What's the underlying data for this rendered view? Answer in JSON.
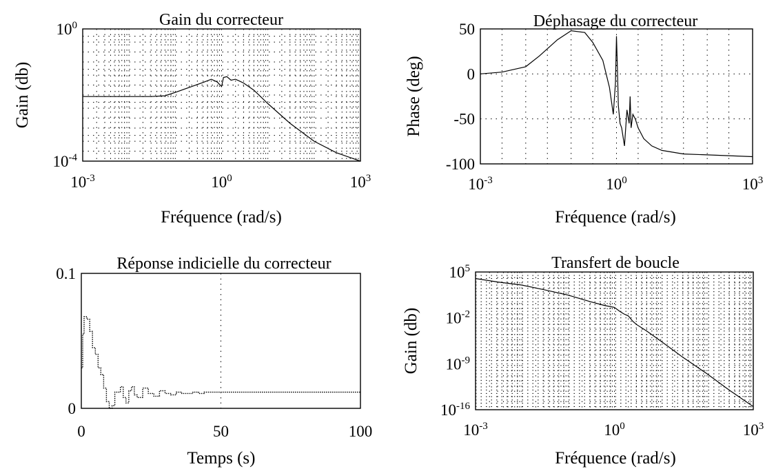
{
  "chart_data": [
    {
      "type": "line",
      "title": "Gain du correcteur",
      "xlabel": "Fréquence (rad/s)",
      "ylabel": "Gain (db)",
      "xscale": "log",
      "yscale": "log",
      "xlim": [
        0.001,
        1000
      ],
      "ylim": [
        0.0001,
        1
      ],
      "grid": true,
      "xticks": [
        {
          "base": "10",
          "exp": "-3"
        },
        {
          "base": "10",
          "exp": "0"
        },
        {
          "base": "10",
          "exp": "3"
        }
      ],
      "yticks": [
        {
          "base": "10",
          "exp": "0"
        },
        {
          "base": "10",
          "exp": "-4"
        }
      ],
      "series": [
        {
          "x": [
            0.001,
            0.01,
            0.03,
            0.06,
            0.1,
            0.2,
            0.4,
            0.6,
            0.8,
            1.0,
            1.1,
            1.3,
            1.6,
            2,
            2.5,
            3,
            5,
            10,
            30,
            100,
            300,
            1000
          ],
          "y": [
            0.009,
            0.009,
            0.009,
            0.0095,
            0.012,
            0.017,
            0.024,
            0.03,
            0.025,
            0.018,
            0.034,
            0.036,
            0.028,
            0.03,
            0.026,
            0.023,
            0.014,
            0.0055,
            0.0014,
            0.0004,
            0.00018,
            0.0001
          ]
        }
      ]
    },
    {
      "type": "line",
      "title": "Déphasage du correcteur",
      "xlabel": "Fréquence (rad/s)",
      "ylabel": "Phase (deg)",
      "xscale": "log",
      "xlim": [
        0.001,
        1000
      ],
      "ylim": [
        -100,
        50
      ],
      "grid": true,
      "xticks": [
        {
          "base": "10",
          "exp": "-3"
        },
        {
          "base": "10",
          "exp": "0"
        },
        {
          "base": "10",
          "exp": "3"
        }
      ],
      "yticks": [
        "50",
        "0",
        "-50",
        "-100"
      ],
      "series": [
        {
          "x": [
            0.001,
            0.003,
            0.01,
            0.02,
            0.05,
            0.1,
            0.2,
            0.3,
            0.5,
            0.7,
            0.85,
            0.95,
            1.0,
            1.05,
            1.1,
            1.2,
            1.3,
            1.5,
            1.7,
            1.9,
            2.0,
            2.1,
            2.3,
            2.6,
            3,
            4,
            6,
            10,
            30,
            100,
            1000
          ],
          "y": [
            0,
            2,
            8,
            20,
            38,
            48,
            46,
            35,
            15,
            -15,
            -45,
            -10,
            42,
            5,
            -35,
            -55,
            -60,
            -80,
            -40,
            -55,
            -25,
            -60,
            -45,
            -50,
            -60,
            -72,
            -80,
            -85,
            -89,
            -90,
            -92
          ]
        }
      ]
    },
    {
      "type": "line",
      "title": "Réponse indicielle du correcteur",
      "xlabel": "Temps (s)",
      "ylabel": "",
      "xlim": [
        0,
        100
      ],
      "ylim": [
        0,
        0.1
      ],
      "grid": true,
      "xticks": [
        "0",
        "50",
        "100"
      ],
      "yticks": [
        "0.1",
        "0"
      ],
      "series": [
        {
          "x": [
            0,
            0.5,
            1,
            2,
            3,
            4,
            5,
            6,
            7,
            8,
            9,
            10,
            11,
            12,
            14,
            15,
            16,
            17,
            18,
            19,
            20,
            22,
            24,
            26,
            28,
            30,
            32,
            34,
            36,
            38,
            40,
            42,
            44,
            50,
            100
          ],
          "y": [
            0.03,
            0.055,
            0.068,
            0.066,
            0.057,
            0.045,
            0.04,
            0.03,
            0.025,
            0.015,
            0.005,
            0,
            0.002,
            0.012,
            0.016,
            0.008,
            0.004,
            0.013,
            0.016,
            0.01,
            0.008,
            0.015,
            0.011,
            0.009,
            0.013,
            0.011,
            0.01,
            0.012,
            0.011,
            0.011,
            0.012,
            0.011,
            0.012,
            0.012,
            0.012
          ]
        }
      ]
    },
    {
      "type": "line",
      "title": "Transfert de boucle",
      "xlabel": "Fréquence (rad/s)",
      "ylabel": "Gain (db)",
      "xscale": "log",
      "yscale": "log",
      "xlim": [
        0.001,
        1000
      ],
      "ylim": [
        1e-16,
        100000
      ],
      "grid": true,
      "xticks": [
        {
          "base": "10",
          "exp": "-3"
        },
        {
          "base": "10",
          "exp": "0"
        },
        {
          "base": "10",
          "exp": "3"
        }
      ],
      "yticks": [
        {
          "base": "10",
          "exp": "5"
        },
        {
          "base": "10",
          "exp": "-2"
        },
        {
          "base": "10",
          "exp": "-9"
        },
        {
          "base": "10",
          "exp": "-16"
        }
      ],
      "series": [
        {
          "x": [
            0.001,
            0.003,
            0.01,
            0.03,
            0.1,
            0.3,
            0.6,
            1.0,
            1.3,
            1.6,
            2.0,
            2.5,
            3,
            5,
            10,
            30,
            100,
            300,
            1000
          ],
          "y": [
            10000.0,
            3000.0,
            1000.0,
            200.0,
            30.0,
            3.0,
            0.8,
            0.4,
            0.1,
            0.04,
            0.02,
            0.003,
            0.001,
            0.0001,
            3e-06,
            1e-08,
            3e-11,
            1e-13,
            3e-16
          ]
        }
      ]
    }
  ]
}
